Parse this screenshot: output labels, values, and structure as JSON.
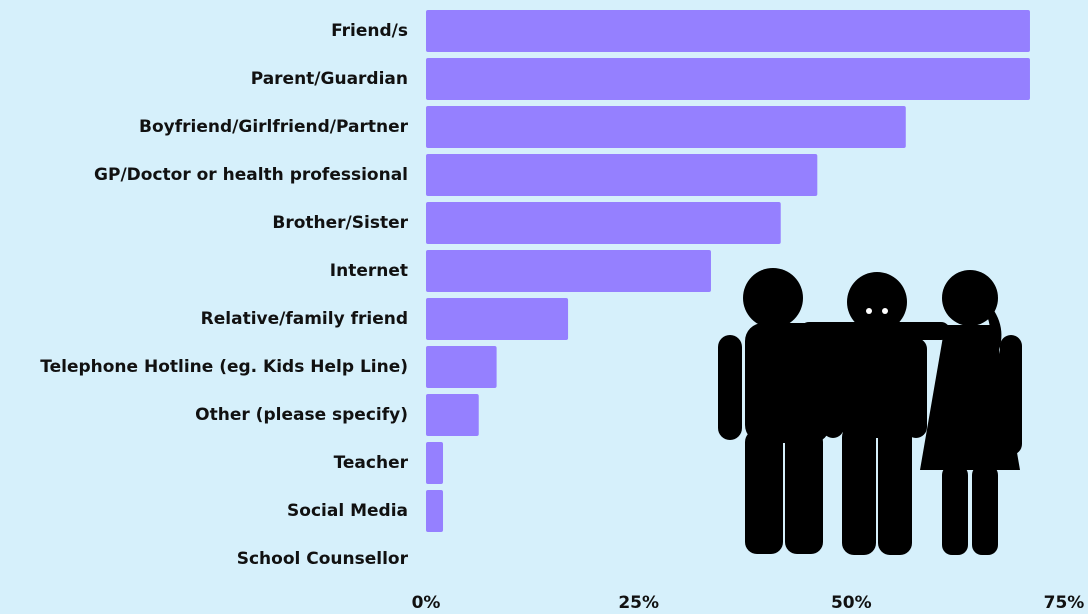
{
  "chart_data": {
    "type": "hbar",
    "categories": [
      "Friend/s",
      "Parent/Guardian",
      "Boyfriend/Girlfriend/Partner",
      "GP/Doctor or health professional",
      "Brother/Sister",
      "Internet",
      "Relative/family friend",
      "Telephone Hotline (eg. Kids Help Line)",
      "Other (please specify)",
      "Teacher",
      "Social Media",
      "School Counsellor"
    ],
    "values": [
      71,
      71,
      56.4,
      46,
      41.7,
      33.5,
      16.7,
      8.3,
      6.2,
      2,
      2,
      0
    ],
    "color": "#9580ff",
    "xlim": [
      0,
      75
    ],
    "xticks": [
      {
        "value": 0,
        "label": "0%"
      },
      {
        "value": 25,
        "label": "25%"
      },
      {
        "value": 50,
        "label": "50%"
      },
      {
        "value": 75,
        "label": "75%"
      }
    ],
    "grid": false
  }
}
